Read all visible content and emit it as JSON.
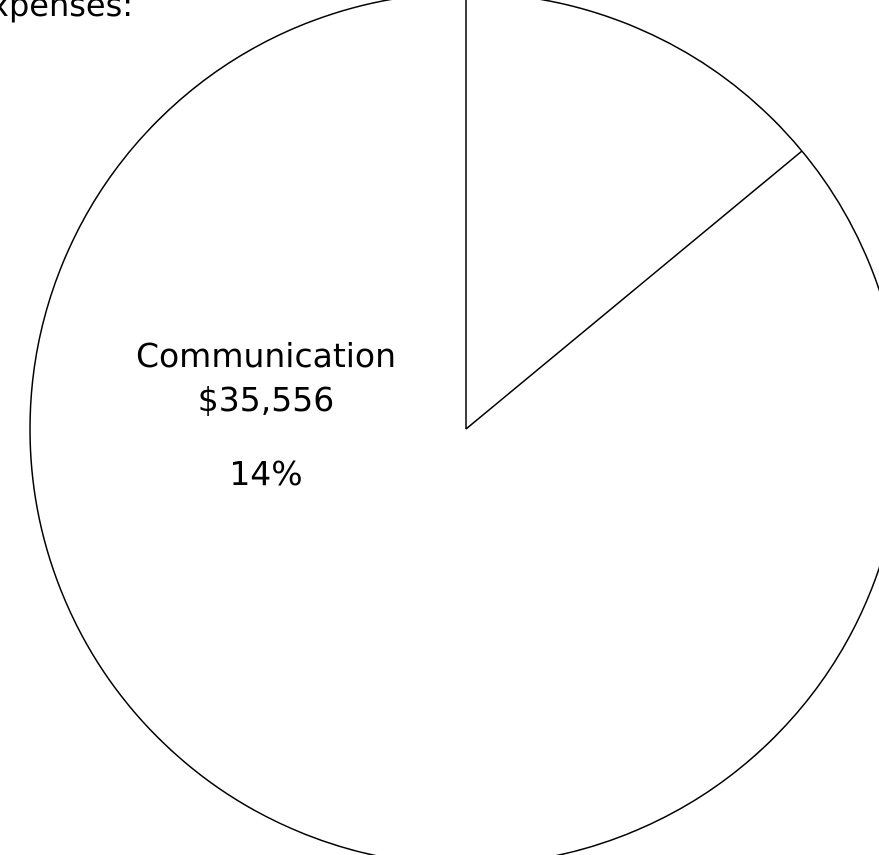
{
  "caption": "xpenses:",
  "chart_data": {
    "type": "pie",
    "title": "",
    "start_angle_deg": 0,
    "direction": "clockwise",
    "slices": [
      {
        "label": "Communication",
        "value_text": "$35,556",
        "value": 35556,
        "percent_text": "14%",
        "percent": 14
      },
      {
        "label": "",
        "value_text": "",
        "percent": 86
      }
    ],
    "colors": {
      "fill": "#ffffff",
      "stroke": "#000000"
    }
  }
}
